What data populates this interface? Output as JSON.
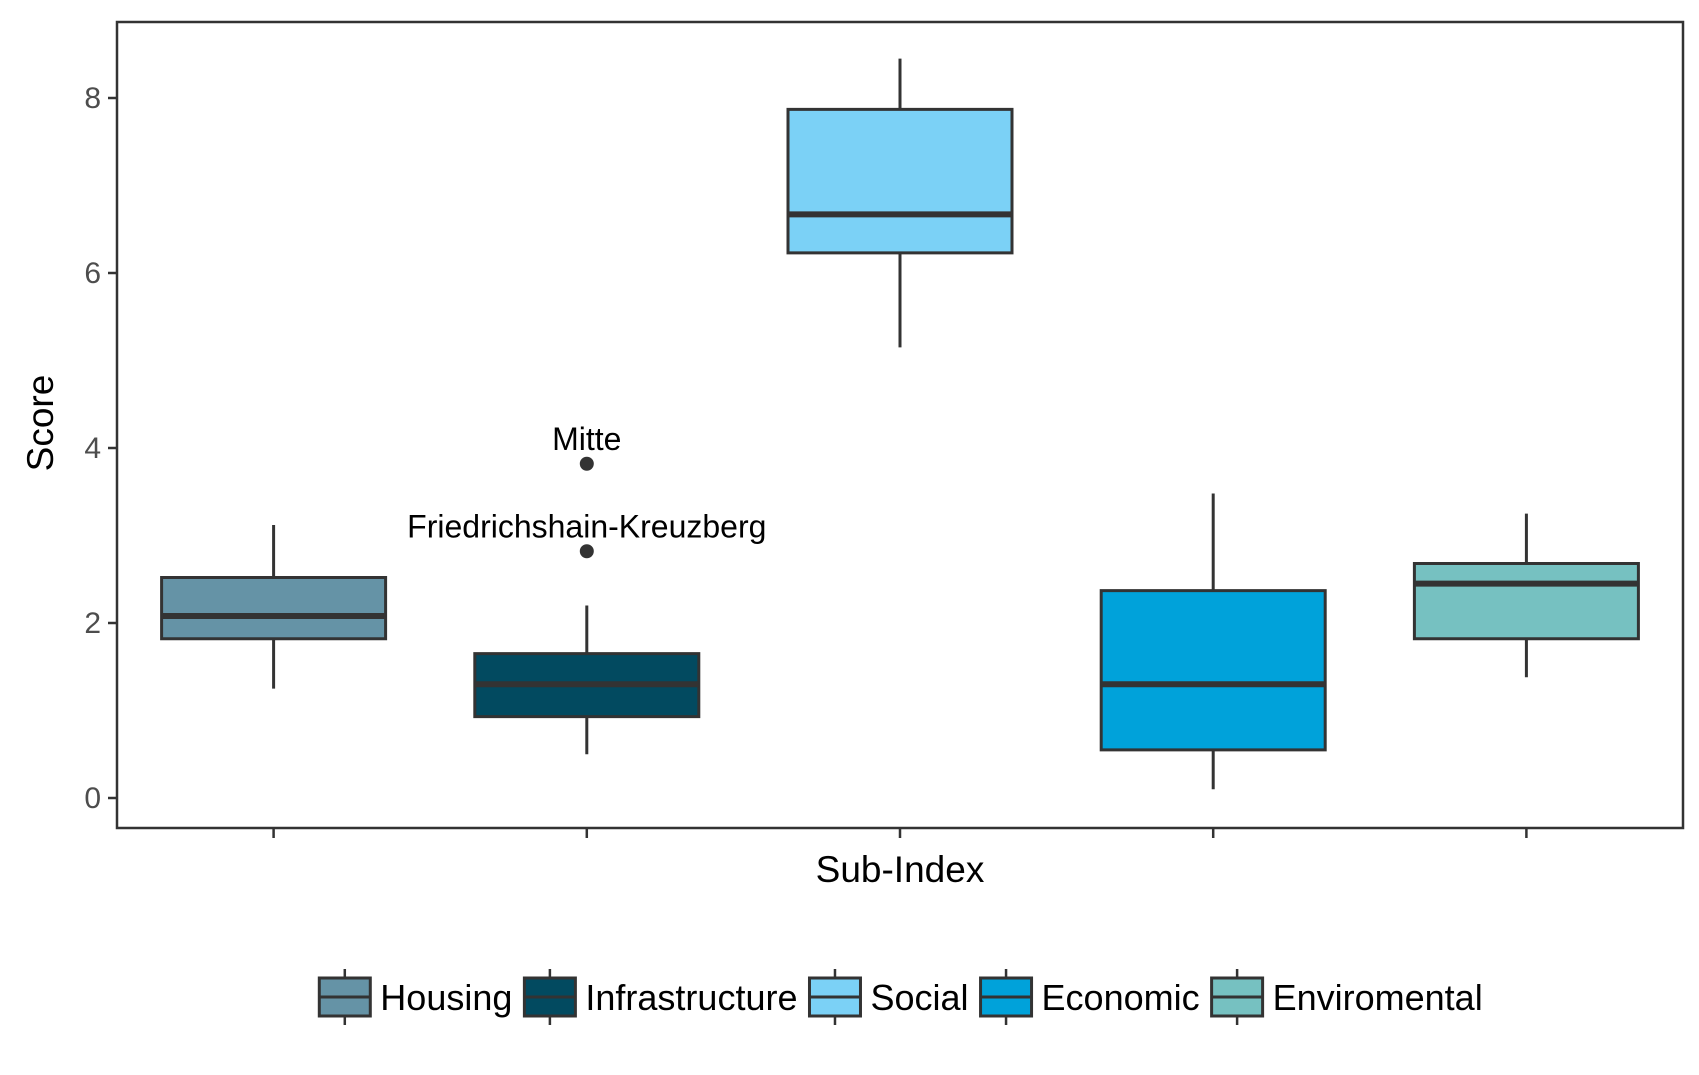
{
  "chart_data": {
    "type": "boxplot",
    "title": "",
    "xlabel": "Sub-Index",
    "ylabel": "Score",
    "ylim": [
      -0.35,
      8.85
    ],
    "yticks": [
      0,
      2,
      4,
      6,
      8
    ],
    "grid": false,
    "legend_position": "bottom",
    "categories": [
      "Housing",
      "Infrastructure",
      "Social",
      "Economic",
      "Enviromental"
    ],
    "series": [
      {
        "name": "Housing",
        "color": "#6593a6",
        "whisker_low": 1.25,
        "q1": 1.82,
        "median": 2.08,
        "q3": 2.52,
        "whisker_high": 3.12,
        "outliers": []
      },
      {
        "name": "Infrastructure",
        "color": "#024a60",
        "whisker_low": 0.5,
        "q1": 0.93,
        "median": 1.3,
        "q3": 1.65,
        "whisker_high": 2.2,
        "outliers": [
          {
            "value": 3.82,
            "label": "Mitte"
          },
          {
            "value": 2.82,
            "label": "Friedrichshain-Kreuzberg"
          }
        ]
      },
      {
        "name": "Social",
        "color": "#7bd1f6",
        "whisker_low": 5.15,
        "q1": 6.23,
        "median": 6.67,
        "q3": 7.87,
        "whisker_high": 8.45,
        "outliers": []
      },
      {
        "name": "Economic",
        "color": "#00a2da",
        "whisker_low": 0.1,
        "q1": 0.55,
        "median": 1.3,
        "q3": 2.37,
        "whisker_high": 3.48,
        "outliers": []
      },
      {
        "name": "Enviromental",
        "color": "#76c1c1",
        "whisker_low": 1.38,
        "q1": 1.82,
        "median": 2.45,
        "q3": 2.68,
        "whisker_high": 3.25,
        "outliers": []
      }
    ]
  }
}
